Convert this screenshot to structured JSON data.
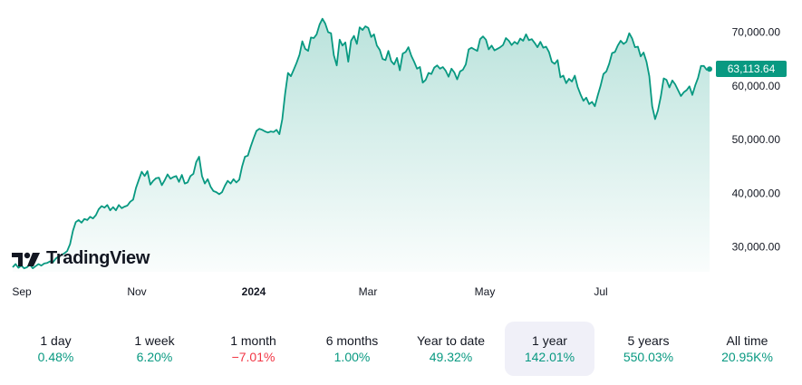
{
  "brand": {
    "name": "TradingView"
  },
  "colors": {
    "line": "#089981",
    "positive": "#089981",
    "negative": "#f23645",
    "active_tab_bg": "#f0f0f8"
  },
  "chart_data": {
    "type": "area",
    "x_labels": [
      "Sep",
      "Nov",
      "2024",
      "Mar",
      "May",
      "Jul"
    ],
    "y_ticks": [
      "30,000.00",
      "40,000.00",
      "50,000.00",
      "60,000.00",
      "70,000.00"
    ],
    "ylim": [
      25000,
      73500
    ],
    "last_value_label": "63,113.64",
    "series": [
      {
        "values": [
          26200,
          26800,
          26100,
          26500,
          26000,
          26200,
          26700,
          26000,
          26400,
          26800,
          26500,
          26900,
          27000,
          27300,
          27100,
          27800,
          28200,
          28500,
          28800,
          29200,
          30500,
          33000,
          34600,
          35000,
          34500,
          35200,
          35000,
          35600,
          35300,
          35900,
          37000,
          37600,
          37300,
          37800,
          36800,
          37400,
          36800,
          37800,
          37200,
          37500,
          37700,
          38400,
          38800,
          41000,
          42500,
          44000,
          43200,
          44100,
          41600,
          42300,
          42800,
          42900,
          41500,
          42400,
          43500,
          42700,
          43000,
          43200,
          42100,
          43400,
          41800,
          42000,
          43200,
          43600,
          45800,
          46800,
          43200,
          41800,
          42600,
          41200,
          40400,
          40200,
          39800,
          40200,
          41400,
          42300,
          41800,
          42600,
          42000,
          42500,
          45000,
          46800,
          47000,
          48700,
          50200,
          51600,
          52000,
          51800,
          51500,
          51300,
          51500,
          51400,
          51800,
          51000,
          53800,
          58500,
          62400,
          61800,
          63000,
          64300,
          65800,
          68300,
          66900,
          66500,
          69000,
          68900,
          69600,
          71400,
          72500,
          71600,
          70000,
          69800,
          65700,
          63800,
          68600,
          67500,
          68100,
          64500,
          68400,
          69300,
          67800,
          70900,
          70400,
          71100,
          70800,
          69100,
          69600,
          67500,
          66700,
          65000,
          64800,
          66500,
          64600,
          64000,
          65200,
          62900,
          66000,
          66300,
          67200,
          65600,
          64500,
          63200,
          63500,
          60600,
          61100,
          62400,
          62200,
          63400,
          63800,
          63200,
          63500,
          62800,
          61700,
          63200,
          62500,
          61200,
          62700,
          63000,
          64000,
          66800,
          67100,
          66800,
          66500,
          68700,
          69200,
          68600,
          66800,
          67500,
          66600,
          66900,
          67200,
          67600,
          68900,
          68400,
          67600,
          68200,
          67800,
          68800,
          68400,
          69600,
          68500,
          68700,
          68000,
          67200,
          68200,
          67100,
          67300,
          66300,
          64500,
          64100,
          64800,
          61600,
          61900,
          60500,
          61300,
          60800,
          61900,
          59800,
          58400,
          57200,
          57800,
          56600,
          57000,
          56200,
          58200,
          60000,
          62200,
          62700,
          64100,
          66100,
          66300,
          67500,
          68400,
          67800,
          68200,
          69800,
          68800,
          67200,
          67300,
          65500,
          66200,
          64500,
          61800,
          56200,
          53800,
          55400,
          58000,
          61400,
          61100,
          59700,
          61000,
          60300,
          59200,
          58100,
          58800,
          59200,
          59900,
          58300,
          60100,
          61500,
          63700,
          63700,
          63000,
          63113.64
        ]
      }
    ]
  },
  "periods": [
    {
      "label": "1 day",
      "change": "0.48%",
      "sign": "pos"
    },
    {
      "label": "1 week",
      "change": "6.20%",
      "sign": "pos"
    },
    {
      "label": "1 month",
      "change": "−7.01%",
      "sign": "neg"
    },
    {
      "label": "6 months",
      "change": "1.00%",
      "sign": "pos"
    },
    {
      "label": "Year to date",
      "change": "49.32%",
      "sign": "pos"
    },
    {
      "label": "1 year",
      "change": "142.01%",
      "sign": "pos",
      "active": true
    },
    {
      "label": "5 years",
      "change": "550.03%",
      "sign": "pos"
    },
    {
      "label": "All time",
      "change": "20.95K%",
      "sign": "pos"
    }
  ]
}
